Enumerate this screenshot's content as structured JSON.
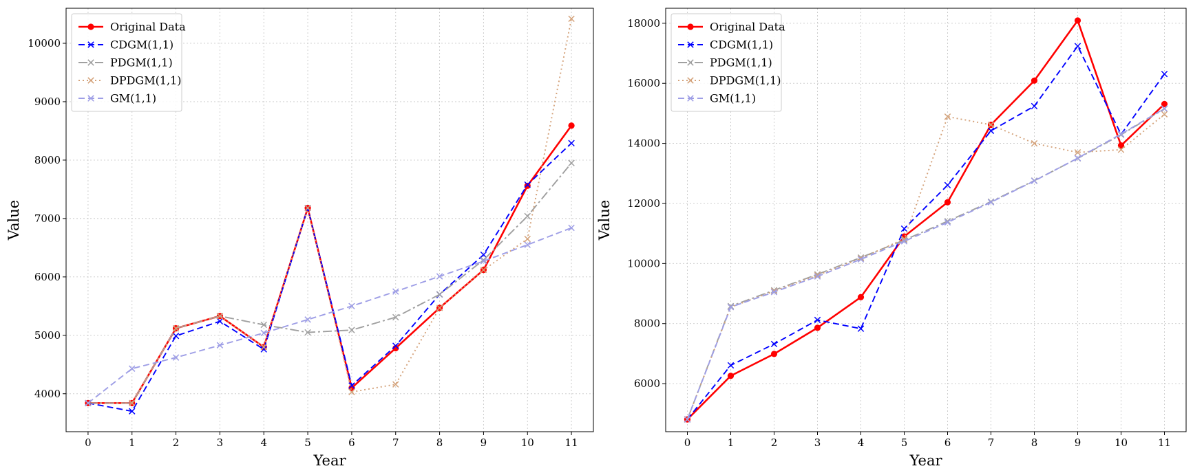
{
  "chart_data": [
    {
      "type": "line",
      "xlabel": "Year",
      "ylabel": "Value",
      "x": [
        0,
        1,
        2,
        3,
        4,
        5,
        6,
        7,
        8,
        9,
        10,
        11
      ],
      "xlim": [
        -0.5,
        11.5
      ],
      "ylim": [
        3350,
        10600
      ],
      "xticks": [
        0,
        1,
        2,
        3,
        4,
        5,
        6,
        7,
        8,
        9,
        10,
        11
      ],
      "yticks": [
        4000,
        5000,
        6000,
        7000,
        8000,
        9000,
        10000
      ],
      "grid": true,
      "legend": "upper left",
      "series": [
        {
          "name": "Original Data",
          "color": "#ff0000",
          "style": "solid",
          "marker": "circle",
          "values": [
            3840,
            3840,
            5120,
            5330,
            4800,
            7180,
            4100,
            4780,
            5470,
            6120,
            7560,
            8590
          ]
        },
        {
          "name": "CDGM(1,1)",
          "color": "#0000ff",
          "style": "dashed",
          "marker": "x",
          "values": [
            3840,
            3700,
            4990,
            5240,
            4760,
            7180,
            4140,
            4820,
            5700,
            6380,
            7580,
            8290
          ]
        },
        {
          "name": "PDGM(1,1)",
          "color": "#a0a0a0",
          "style": "dashdot",
          "marker": "x",
          "values": [
            3840,
            3840,
            5120,
            5330,
            5180,
            5050,
            5090,
            5310,
            5700,
            6290,
            7040,
            7950
          ]
        },
        {
          "name": "DPDGM(1,1)",
          "color": "#d4a27a",
          "style": "dotted",
          "marker": "x",
          "values": [
            3840,
            3840,
            5120,
            5330,
            4800,
            7180,
            4030,
            4160,
            5470,
            6120,
            6650,
            10420
          ]
        },
        {
          "name": "GM(1,1)",
          "color": "#9e9ee6",
          "style": "dashed",
          "marker": "x",
          "values": [
            3840,
            4430,
            4620,
            4830,
            5040,
            5270,
            5500,
            5750,
            6010,
            6270,
            6550,
            6840
          ]
        }
      ]
    },
    {
      "type": "line",
      "xlabel": "Year",
      "ylabel": "Value",
      "x": [
        0,
        1,
        2,
        3,
        4,
        5,
        6,
        7,
        8,
        9,
        10,
        11
      ],
      "xlim": [
        -0.5,
        11.5
      ],
      "ylim": [
        4400,
        18500
      ],
      "xticks": [
        0,
        1,
        2,
        3,
        4,
        5,
        6,
        7,
        8,
        9,
        10,
        11
      ],
      "yticks": [
        6000,
        8000,
        10000,
        12000,
        14000,
        16000,
        18000
      ],
      "grid": true,
      "legend": "upper left",
      "series": [
        {
          "name": "Original Data",
          "color": "#ff0000",
          "style": "solid",
          "marker": "circle",
          "values": [
            4810,
            6260,
            6990,
            7860,
            8880,
            10900,
            12040,
            14620,
            16090,
            18090,
            13930,
            15310
          ]
        },
        {
          "name": "CDGM(1,1)",
          "color": "#0000ff",
          "style": "dashed",
          "marker": "x",
          "values": [
            4810,
            6610,
            7320,
            8120,
            7830,
            11160,
            12610,
            14420,
            15240,
            17240,
            14300,
            16310
          ]
        },
        {
          "name": "PDGM(1,1)",
          "color": "#a0a0a0",
          "style": "dashdot",
          "marker": "x",
          "values": [
            4810,
            8580,
            9110,
            9640,
            10200,
            10780,
            11410,
            12060,
            12760,
            13500,
            14290,
            15150
          ]
        },
        {
          "name": "DPDGM(1,1)",
          "color": "#d4a27a",
          "style": "dotted",
          "marker": "x",
          "values": [
            4810,
            8550,
            9080,
            9610,
            10170,
            10820,
            14890,
            14620,
            14000,
            13700,
            13790,
            14970
          ]
        },
        {
          "name": "GM(1,1)",
          "color": "#9e9ee6",
          "style": "dashed",
          "marker": "x",
          "values": [
            4810,
            8550,
            9050,
            9570,
            10140,
            10740,
            11370,
            12040,
            12750,
            13510,
            14310,
            15160
          ]
        }
      ]
    }
  ]
}
